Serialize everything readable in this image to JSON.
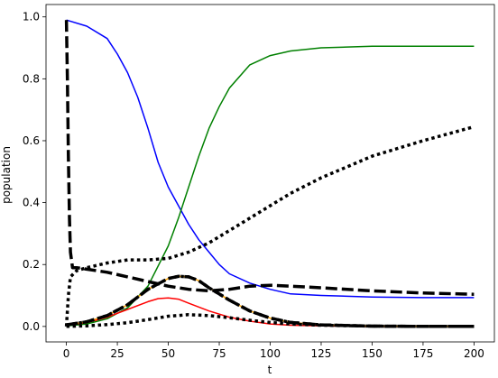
{
  "chart_data": {
    "type": "line",
    "title": "",
    "xlabel": "t",
    "ylabel": "population",
    "xlim": [
      -10,
      210
    ],
    "ylim": [
      -0.05,
      1.04
    ],
    "grid": false,
    "legend": "none",
    "xticks": [
      0,
      25,
      50,
      75,
      100,
      125,
      150,
      175,
      200
    ],
    "xtick_labels": [
      "0",
      "25",
      "50",
      "75",
      "100",
      "125",
      "150",
      "175",
      "200"
    ],
    "yticks": [
      0.0,
      0.2,
      0.4,
      0.6,
      0.8,
      1.0
    ],
    "ytick_labels": [
      "0.0",
      "0.2",
      "0.4",
      "0.6",
      "0.8",
      "1.0"
    ],
    "series": [
      {
        "color": "#0000ff",
        "style": "solid",
        "x": [
          0,
          10,
          20,
          25,
          30,
          35,
          40,
          45,
          50,
          55,
          60,
          65,
          70,
          75,
          80,
          90,
          100,
          110,
          125,
          150,
          175,
          200
        ],
        "y": [
          0.99,
          0.97,
          0.93,
          0.88,
          0.82,
          0.74,
          0.64,
          0.53,
          0.45,
          0.39,
          0.33,
          0.28,
          0.24,
          0.2,
          0.17,
          0.14,
          0.12,
          0.105,
          0.1,
          0.095,
          0.093,
          0.093
        ]
      },
      {
        "color": "#008000",
        "style": "solid",
        "x": [
          0,
          10,
          20,
          30,
          40,
          50,
          55,
          60,
          65,
          70,
          75,
          80,
          90,
          100,
          110,
          125,
          150,
          175,
          200
        ],
        "y": [
          0.002,
          0.008,
          0.025,
          0.06,
          0.13,
          0.26,
          0.35,
          0.45,
          0.55,
          0.64,
          0.71,
          0.77,
          0.845,
          0.875,
          0.89,
          0.9,
          0.905,
          0.905,
          0.905
        ]
      },
      {
        "color": "#ff0000",
        "style": "solid",
        "x": [
          0,
          10,
          20,
          30,
          40,
          45,
          50,
          55,
          60,
          70,
          80,
          90,
          100,
          110,
          125,
          150,
          175,
          200
        ],
        "y": [
          0.005,
          0.012,
          0.03,
          0.055,
          0.08,
          0.09,
          0.092,
          0.088,
          0.075,
          0.05,
          0.03,
          0.017,
          0.008,
          0.004,
          0.002,
          0.0,
          0.0,
          0.0
        ]
      },
      {
        "color": "#ffa500",
        "style": "solid",
        "x": [
          0,
          10,
          20,
          30,
          40,
          50,
          55,
          60,
          65,
          70,
          80,
          90,
          100,
          110,
          125,
          150,
          175,
          200
        ],
        "y": [
          0.005,
          0.015,
          0.035,
          0.07,
          0.12,
          0.155,
          0.162,
          0.16,
          0.148,
          0.125,
          0.085,
          0.05,
          0.027,
          0.013,
          0.005,
          0.001,
          0.0,
          0.0
        ]
      },
      {
        "color": "#000000",
        "style": "dotted",
        "x": [
          0,
          1,
          2,
          5,
          10,
          20,
          30,
          40,
          50,
          60,
          70,
          80,
          90,
          100,
          110,
          125,
          150,
          175,
          200
        ],
        "y": [
          0.0,
          0.1,
          0.16,
          0.18,
          0.19,
          0.205,
          0.215,
          0.215,
          0.22,
          0.24,
          0.27,
          0.31,
          0.35,
          0.39,
          0.43,
          0.48,
          0.55,
          0.6,
          0.645
        ]
      },
      {
        "color": "#000000",
        "style": "dashed",
        "x": [
          0,
          0.5,
          1,
          1.5,
          2,
          3,
          5,
          10,
          20,
          30,
          40,
          50,
          60,
          70,
          80,
          90,
          100,
          110,
          125,
          150,
          175,
          200
        ],
        "y": [
          0.99,
          0.8,
          0.55,
          0.35,
          0.24,
          0.19,
          0.19,
          0.185,
          0.175,
          0.16,
          0.145,
          0.13,
          0.12,
          0.115,
          0.12,
          0.13,
          0.133,
          0.13,
          0.125,
          0.115,
          0.108,
          0.104
        ]
      },
      {
        "color": "#000000",
        "style": "dashed",
        "x": [
          0,
          10,
          20,
          30,
          40,
          50,
          55,
          60,
          65,
          70,
          80,
          90,
          100,
          110,
          125,
          150,
          175,
          200
        ],
        "y": [
          0.005,
          0.015,
          0.035,
          0.07,
          0.12,
          0.155,
          0.162,
          0.16,
          0.148,
          0.125,
          0.085,
          0.05,
          0.027,
          0.013,
          0.005,
          0.001,
          0.0,
          0.0
        ]
      },
      {
        "color": "#000000",
        "style": "dotted",
        "x": [
          0,
          10,
          20,
          30,
          40,
          50,
          60,
          70,
          80,
          90,
          100,
          110,
          125,
          150,
          175,
          200
        ],
        "y": [
          0.0,
          0.002,
          0.006,
          0.012,
          0.022,
          0.033,
          0.038,
          0.035,
          0.028,
          0.02,
          0.013,
          0.008,
          0.004,
          0.001,
          0.0,
          0.0
        ]
      },
      {
        "color": "#000000",
        "style": "dotted",
        "x": [
          0,
          10,
          20,
          30,
          40,
          50,
          55,
          60,
          65,
          70,
          80,
          90,
          100,
          110,
          125,
          150,
          175,
          200
        ],
        "y": [
          0.005,
          0.015,
          0.035,
          0.07,
          0.12,
          0.155,
          0.162,
          0.16,
          0.148,
          0.125,
          0.085,
          0.05,
          0.027,
          0.013,
          0.005,
          0.001,
          0.0,
          0.0
        ]
      }
    ]
  }
}
